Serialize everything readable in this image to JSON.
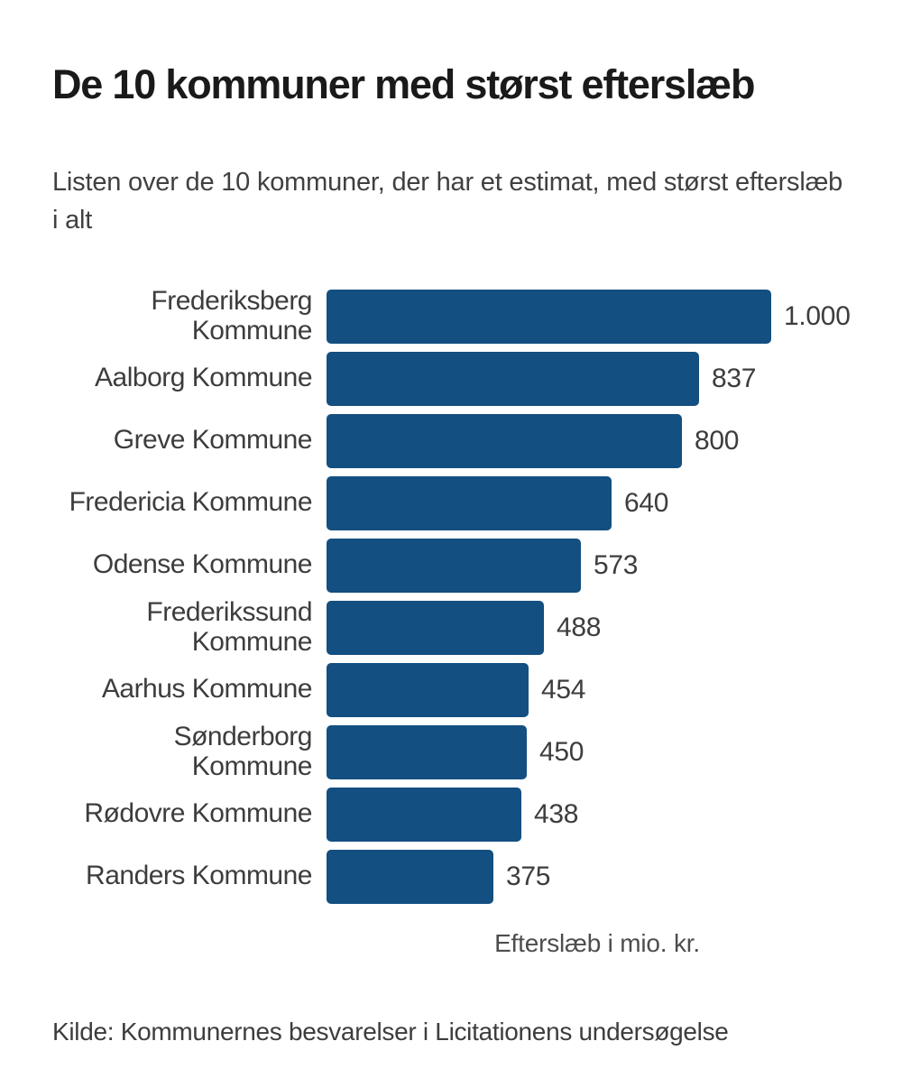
{
  "header": {
    "title": "De 10 kommuner med størst efterslæb",
    "subtitle": "Listen over de 10 kommuner, der har et estimat, med størst efterslæb i alt"
  },
  "chart_data": {
    "type": "bar",
    "orientation": "horizontal",
    "title": "De 10 kommuner med størst efterslæb",
    "subtitle": "Listen over de 10 kommuner, der har et estimat, med størst efterslæb i alt",
    "categories": [
      "Frederiksberg Kommune",
      "Aalborg Kommune",
      "Greve Kommune",
      "Fredericia Kommune",
      "Odense Kommune",
      "Frederikssund Kommune",
      "Aarhus Kommune",
      "Sønderborg Kommune",
      "Rødovre Kommune",
      "Randers Kommune"
    ],
    "values": [
      1000,
      837,
      800,
      640,
      573,
      488,
      454,
      450,
      438,
      375
    ],
    "value_labels": [
      "1.000",
      "837",
      "800",
      "640",
      "573",
      "488",
      "454",
      "450",
      "438",
      "375"
    ],
    "xlabel": "Efterslæb i mio. kr.",
    "ylabel": "",
    "xlim": [
      0,
      1000
    ],
    "grid": false,
    "legend": false,
    "bar_color": "#134f80",
    "label_color": "#3d3d3d",
    "value_color": "#3d3d3d"
  },
  "footer": {
    "source": "Kilde: Kommunernes besvarelser i Licitationens undersøgelse"
  }
}
